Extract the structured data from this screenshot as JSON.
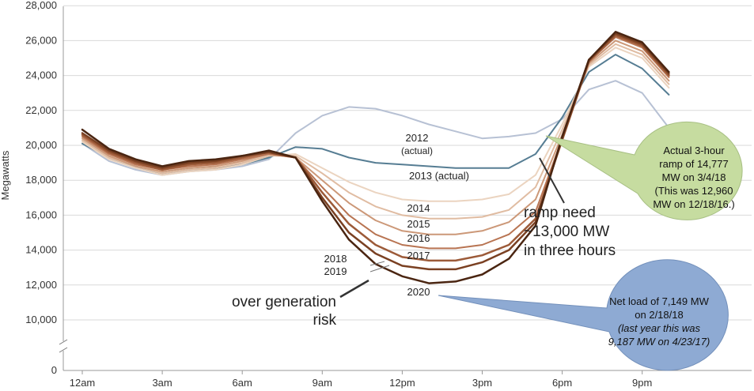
{
  "chart_data": {
    "type": "line",
    "ylabel": "Megawatts",
    "ylim": [
      0,
      28000
    ],
    "yticks": [
      0,
      10000,
      12000,
      14000,
      16000,
      18000,
      20000,
      22000,
      24000,
      26000,
      28000
    ],
    "ytick_labels": [
      "0",
      "10,000",
      "12,000",
      "14,000",
      "16,000",
      "18,000",
      "20,000",
      "22,000",
      "24,000",
      "26,000",
      "28,000"
    ],
    "axis_break": true,
    "grid": "horizontal",
    "x_hours": [
      0,
      1,
      2,
      3,
      4,
      5,
      6,
      7,
      8,
      9,
      10,
      11,
      12,
      13,
      14,
      15,
      16,
      17,
      18,
      19,
      20,
      21,
      22
    ],
    "x_ticks": [
      0,
      3,
      6,
      9,
      12,
      15,
      18,
      21
    ],
    "x_tick_labels": [
      "12am",
      "3am",
      "6am",
      "9am",
      "12pm",
      "3pm",
      "6pm",
      "9pm"
    ],
    "series": [
      {
        "name": "2012 (actual)",
        "color": "#b7c1d4",
        "width": 2,
        "values": [
          20100,
          19100,
          18600,
          18300,
          18500,
          18600,
          18800,
          19200,
          20700,
          21700,
          22200,
          22100,
          21700,
          21200,
          20800,
          20400,
          20500,
          20700,
          21500,
          23200,
          23700,
          23000,
          21000
        ]
      },
      {
        "name": "2013 (actual)",
        "color": "#567d93",
        "width": 2,
        "values": [
          20100,
          19300,
          18700,
          18400,
          18600,
          18700,
          18900,
          19300,
          19900,
          19800,
          19300,
          19000,
          18900,
          18800,
          18700,
          18700,
          18700,
          19500,
          21600,
          24200,
          25200,
          24400,
          22900
        ]
      },
      {
        "name": "2014",
        "color": "#ebd4c0",
        "width": 2,
        "values": [
          20200,
          19200,
          18700,
          18300,
          18500,
          18600,
          18900,
          19400,
          19500,
          18700,
          17900,
          17300,
          16900,
          16800,
          16800,
          16900,
          17200,
          18300,
          21200,
          24500,
          25600,
          25000,
          23300
        ]
      },
      {
        "name": "2015",
        "color": "#e0bca2",
        "width": 2,
        "values": [
          20300,
          19300,
          18800,
          18400,
          18600,
          18700,
          19000,
          19400,
          19400,
          18400,
          17300,
          16500,
          16000,
          15800,
          15800,
          15900,
          16300,
          17600,
          20900,
          24600,
          25800,
          25200,
          23500
        ]
      },
      {
        "name": "2016",
        "color": "#cc9878",
        "width": 2,
        "values": [
          20400,
          19400,
          18800,
          18500,
          18700,
          18800,
          19100,
          19500,
          19300,
          18000,
          16700,
          15700,
          15100,
          14900,
          14900,
          15100,
          15600,
          16900,
          20600,
          24700,
          26000,
          25400,
          23700
        ]
      },
      {
        "name": "2017",
        "color": "#b87452",
        "width": 2,
        "values": [
          20500,
          19500,
          18900,
          18600,
          18800,
          18900,
          19200,
          19500,
          19300,
          17600,
          16000,
          14900,
          14300,
          14100,
          14100,
          14300,
          14900,
          16200,
          20400,
          24800,
          26200,
          25600,
          23900
        ]
      },
      {
        "name": "2018",
        "color": "#9c5a38",
        "width": 2.5,
        "values": [
          20600,
          19600,
          19000,
          18600,
          18900,
          19000,
          19300,
          19600,
          19300,
          17300,
          15500,
          14300,
          13600,
          13400,
          13400,
          13700,
          14300,
          15800,
          20300,
          24800,
          26300,
          25700,
          24000
        ]
      },
      {
        "name": "2019",
        "color": "#7a4022",
        "width": 2.5,
        "values": [
          20700,
          19700,
          19100,
          18700,
          19000,
          19100,
          19400,
          19600,
          19300,
          17000,
          15000,
          13800,
          13100,
          12900,
          12900,
          13300,
          14000,
          15600,
          20400,
          24900,
          26400,
          25800,
          24100
        ]
      },
      {
        "name": "2020",
        "color": "#4a2511",
        "width": 2.5,
        "values": [
          20900,
          19800,
          19200,
          18800,
          19100,
          19200,
          19400,
          19700,
          19300,
          16800,
          14600,
          13200,
          12500,
          12100,
          12200,
          12600,
          13500,
          15400,
          20500,
          24900,
          26500,
          25900,
          24200
        ]
      }
    ],
    "year_labels": [
      {
        "text": "2012",
        "series": "2012 (actual)"
      },
      {
        "text": "(actual)",
        "series": "2012 (actual)"
      },
      {
        "text": "2013 (actual)",
        "series": "2013 (actual)"
      },
      {
        "text": "2014",
        "series": "2014"
      },
      {
        "text": "2015",
        "series": "2015"
      },
      {
        "text": "2016",
        "series": "2016"
      },
      {
        "text": "2017",
        "series": "2017"
      },
      {
        "text": "2018",
        "series": "2018"
      },
      {
        "text": "2019",
        "series": "2019"
      },
      {
        "text": "2020",
        "series": "2020"
      }
    ],
    "annotations": {
      "ramp_lines": [
        "ramp need",
        "~13,000 MW",
        "in three hours"
      ],
      "risk_lines": [
        "over generation",
        "risk"
      ]
    }
  },
  "callouts": {
    "ramp": {
      "lines": [
        "Actual 3-hour",
        "ramp of 14,777",
        "MW on 3/4/18",
        "(This was 12,960",
        "MW on 12/18/16.)"
      ],
      "fill": "#c6dca0"
    },
    "net_load": {
      "lines": [
        "Net load of 7,149 MW",
        "on 2/18/18"
      ],
      "italic_lines": [
        "(last year this was",
        "9,187 MW on 4/23/17)"
      ],
      "fill": "#8eaad3"
    }
  }
}
